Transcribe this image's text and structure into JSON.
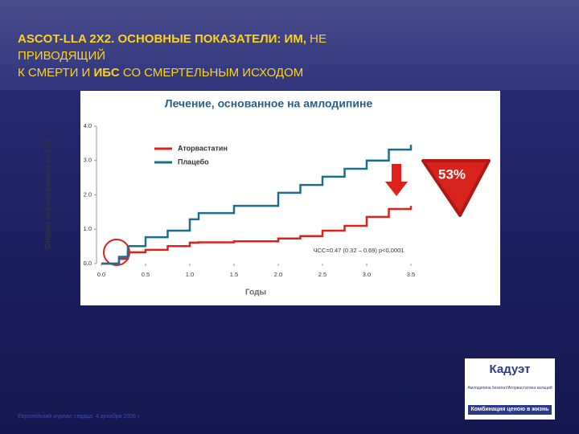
{
  "slide": {
    "title_lines": [
      [
        {
          "text": "ASCOT-LLA 2X2. ОСНОВНЫЕ ПОКАЗАТЕЛИ: ИМ,",
          "bold": true
        },
        {
          "text": "НЕ",
          "bold": false
        }
      ],
      [
        {
          "text": "ПРИВОДЯЩИЙ",
          "bold": false
        }
      ],
      [
        {
          "text": "К СМЕРТИ И",
          "bold": false
        },
        {
          "text": "ИБС",
          "bold": true
        },
        {
          "text": "СО СМЕРТЕЛЬНЫМ ИСХОДОМ",
          "bold": false
        }
      ]
    ],
    "footnote": "Европейский журнал сердца, 4 декабря 2006 г.",
    "logo": {
      "name": "Кадуэт",
      "subtitle": "Амлодипина безилат/Аторвастатина кальций",
      "slogan": "Комбинация ценою в жизнь"
    }
  },
  "chart_data": {
    "type": "line",
    "title": "Лечение, основанное на амлодипине",
    "xlabel": "Годы",
    "ylabel": "Общая заболеваемость (%)",
    "x": [
      0,
      0.2,
      0.3,
      0.5,
      0.75,
      1.0,
      1.1,
      1.5,
      2.0,
      2.25,
      2.5,
      2.75,
      3.0,
      3.25,
      3.5
    ],
    "series": [
      {
        "name": "Аторвастатин",
        "color": "#e0201b",
        "values": [
          0,
          0.14,
          0.33,
          0.4,
          0.51,
          0.61,
          0.62,
          0.65,
          0.73,
          0.8,
          0.96,
          1.1,
          1.36,
          1.59,
          1.68
        ]
      },
      {
        "name": "Плацебо",
        "color": "#1a6f8a",
        "values": [
          0,
          0.2,
          0.51,
          0.77,
          0.96,
          1.29,
          1.47,
          1.68,
          2.06,
          2.29,
          2.53,
          2.76,
          3.0,
          3.32,
          3.46
        ]
      }
    ],
    "xlim": [
      0,
      3.5
    ],
    "ylim": [
      0,
      4
    ],
    "xticks": [
      {
        "value": 0,
        "label": "0.0"
      },
      0.5,
      {
        "value": 1,
        "label": "1.0"
      },
      1.5,
      {
        "value": 2,
        "label": "2.0"
      },
      2.5,
      {
        "value": 3,
        "label": "3.0"
      },
      3.5
    ],
    "yticks": [
      {
        "value": 0,
        "label": "0.0"
      },
      {
        "value": 1,
        "label": "1.0"
      },
      {
        "value": 2,
        "label": "2.0"
      },
      {
        "value": 3,
        "label": "3.0"
      },
      {
        "value": 4,
        "label": "4.0"
      }
    ],
    "legend": "upper-left",
    "annotations": [
      "ЧСС=0.47 (0.32 – 0.69) p<0.0001",
      "53%"
    ]
  }
}
